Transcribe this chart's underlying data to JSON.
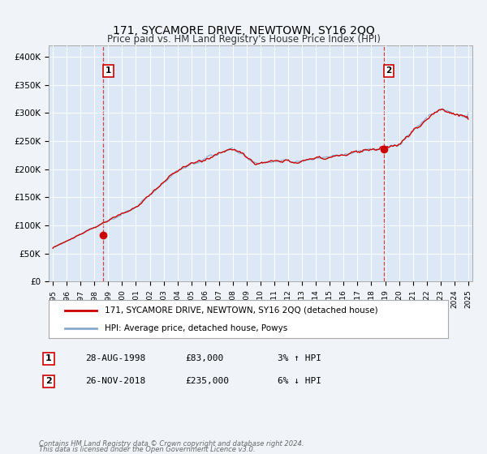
{
  "title": "171, SYCAMORE DRIVE, NEWTOWN, SY16 2QQ",
  "subtitle": "Price paid vs. HM Land Registry's House Price Index (HPI)",
  "bg_color": "#f0f4f8",
  "plot_bg_color": "#dce8f5",
  "grid_color": "#ffffff",
  "line1_color": "#cc0000",
  "line2_color": "#88aacc",
  "ylabel_vals": [
    0,
    50000,
    100000,
    150000,
    200000,
    250000,
    300000,
    350000,
    400000
  ],
  "ylabel_strs": [
    "£0",
    "£50K",
    "£100K",
    "£150K",
    "£200K",
    "£250K",
    "£300K",
    "£350K",
    "£400K"
  ],
  "xlim_start": 1994.7,
  "xlim_end": 2025.3,
  "ylim": [
    0,
    420000
  ],
  "legend_label1": "171, SYCAMORE DRIVE, NEWTOWN, SY16 2QQ (detached house)",
  "legend_label2": "HPI: Average price, detached house, Powys",
  "transaction1_date": "28-AUG-1998",
  "transaction1_price": 83000,
  "transaction1_note": "3% ↑ HPI",
  "transaction1_year": 1998.65,
  "transaction2_date": "26-NOV-2018",
  "transaction2_price": 235000,
  "transaction2_note": "6% ↓ HPI",
  "transaction2_year": 2018.9,
  "footer1": "Contains HM Land Registry data © Crown copyright and database right 2024.",
  "footer2": "This data is licensed under the Open Government Licence v3.0."
}
